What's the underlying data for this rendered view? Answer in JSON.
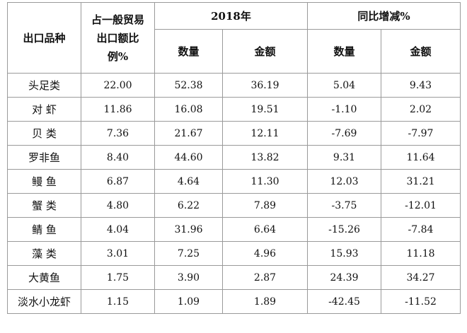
{
  "headers": {
    "product": "出口品种",
    "share_line1": "占一般贸易",
    "share_line2": "出口额比",
    "share_line3": "例%",
    "year": "2018年",
    "yoy": "同比增减%",
    "qty": "数量",
    "amount": "金额"
  },
  "rows": [
    {
      "name": "头足类",
      "share": "22.00",
      "qty": "52.38",
      "amount": "36.19",
      "qty_chg": "5.04",
      "amt_chg": "9.43"
    },
    {
      "name": "对 虾",
      "share": "11.86",
      "qty": "16.08",
      "amount": "19.51",
      "qty_chg": "-1.10",
      "amt_chg": "2.02"
    },
    {
      "name": "贝 类",
      "share": "7.36",
      "qty": "21.67",
      "amount": "12.11",
      "qty_chg": "-7.69",
      "amt_chg": "-7.97"
    },
    {
      "name": "罗非鱼",
      "share": "8.40",
      "qty": "44.60",
      "amount": "13.82",
      "qty_chg": "9.31",
      "amt_chg": "11.64"
    },
    {
      "name": "鳗 鱼",
      "share": "6.87",
      "qty": "4.64",
      "amount": "11.30",
      "qty_chg": "12.03",
      "amt_chg": "31.21"
    },
    {
      "name": "蟹 类",
      "share": "4.80",
      "qty": "6.22",
      "amount": "7.89",
      "qty_chg": "-3.75",
      "amt_chg": "-12.01"
    },
    {
      "name": "鲭 鱼",
      "share": "4.04",
      "qty": "31.96",
      "amount": "6.64",
      "qty_chg": "-15.26",
      "amt_chg": "-7.84"
    },
    {
      "name": "藻 类",
      "share": "3.01",
      "qty": "7.25",
      "amount": "4.96",
      "qty_chg": "15.93",
      "amt_chg": "11.18"
    },
    {
      "name": "大黄鱼",
      "share": "1.75",
      "qty": "3.90",
      "amount": "2.87",
      "qty_chg": "24.39",
      "amt_chg": "34.27"
    },
    {
      "name": "淡水小龙虾",
      "share": "1.15",
      "qty": "1.09",
      "amount": "1.89",
      "qty_chg": "-42.45",
      "amt_chg": "-11.52"
    }
  ]
}
